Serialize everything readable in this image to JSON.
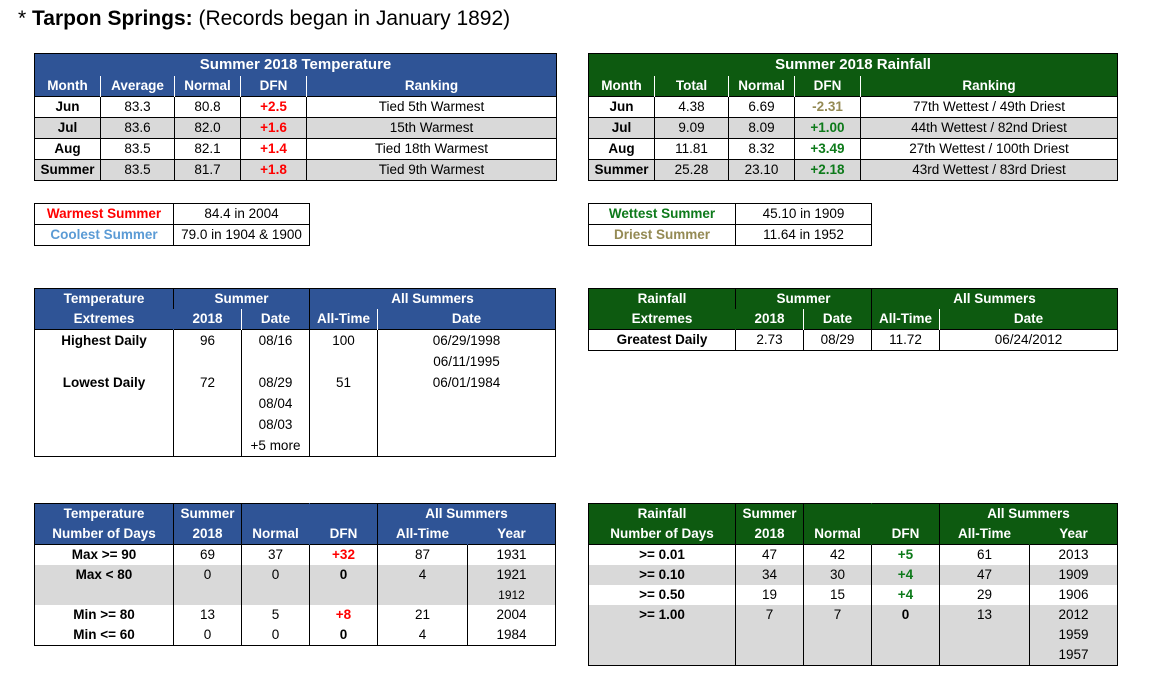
{
  "title": {
    "prefix": "* ",
    "location": "Tarpon Springs:",
    "note": "(Records began in January 1892)"
  },
  "temp_summary": {
    "caption": "Summer 2018 Temperature",
    "headers": [
      "Month",
      "Average",
      "Normal",
      "DFN",
      "Ranking"
    ],
    "rows": [
      [
        "Jun",
        "83.3",
        "80.8",
        "+2.5",
        "Tied 5th Warmest"
      ],
      [
        "Jul",
        "83.6",
        "82.0",
        "+1.6",
        "15th Warmest"
      ],
      [
        "Aug",
        "83.5",
        "82.1",
        "+1.4",
        "Tied 18th Warmest"
      ],
      [
        "Summer",
        "83.5",
        "81.7",
        "+1.8",
        "Tied 9th Warmest"
      ]
    ]
  },
  "rain_summary": {
    "caption": "Summer 2018 Rainfall",
    "headers": [
      "Month",
      "Total",
      "Normal",
      "DFN",
      "Ranking"
    ],
    "rows": [
      [
        "Jun",
        "4.38",
        "6.69",
        "-2.31",
        "77th Wettest / 49th Driest"
      ],
      [
        "Jul",
        "9.09",
        "8.09",
        "+1.00",
        "44th Wettest / 82nd Driest"
      ],
      [
        "Aug",
        "11.81",
        "8.32",
        "+3.49",
        "27th Wettest / 100th Driest"
      ],
      [
        "Summer",
        "25.28",
        "23.10",
        "+2.18",
        "43rd Wettest / 83rd Driest"
      ]
    ]
  },
  "temp_records": {
    "warmest_label": "Warmest Summer",
    "warmest_value": "84.4 in 2004",
    "coolest_label": "Coolest Summer",
    "coolest_value": "79.0 in 1904 & 1900"
  },
  "rain_records": {
    "wettest_label": "Wettest Summer",
    "wettest_value": "45.10 in 1909",
    "driest_label": "Driest Summer",
    "driest_value": "11.64 in 1952"
  },
  "temp_extremes": {
    "h1": "Temperature",
    "h1b": "Extremes",
    "h2": "Summer",
    "h2a": "2018",
    "h2b": "Date",
    "h3": "All Summers",
    "h3a": "All-Time",
    "h3b": "Date",
    "labels": [
      "Highest Daily",
      "Lowest Daily"
    ],
    "summer_vals": [
      "96",
      "72"
    ],
    "summer_dates": [
      "08/16",
      "08/29",
      "08/04",
      "08/03",
      "+5 more"
    ],
    "alltime_vals": [
      "100",
      "51"
    ],
    "alltime_dates": [
      "06/29/1998",
      "06/11/1995",
      "06/01/1984"
    ]
  },
  "rain_extremes": {
    "h1": "Rainfall",
    "h1b": "Extremes",
    "h2": "Summer",
    "h2a": "2018",
    "h2b": "Date",
    "h3": "All Summers",
    "h3a": "All-Time",
    "h3b": "Date",
    "row": [
      "Greatest Daily",
      "2.73",
      "08/29",
      "11.72",
      "06/24/2012"
    ]
  },
  "temp_days": {
    "h1": "Temperature",
    "h1b": "Number of Days",
    "h2": "Summer",
    "h2a": "2018",
    "h3": "Normal",
    "h4": "DFN",
    "h5": "All Summers",
    "h5a": "All-Time",
    "h5b": "Year",
    "rows": [
      [
        "Max >= 90",
        "69",
        "37",
        "+32",
        "87",
        "1931"
      ],
      [
        "Max < 80",
        "0",
        "0",
        "0",
        "4",
        "1921"
      ],
      [
        "",
        "",
        "",
        "",
        "",
        "1912"
      ],
      [
        "Min >= 80",
        "13",
        "5",
        "+8",
        "21",
        "2004"
      ],
      [
        "Min <= 60",
        "0",
        "0",
        "0",
        "4",
        "1984"
      ]
    ]
  },
  "rain_days": {
    "h1": "Rainfall",
    "h1b": "Number of Days",
    "h2": "Summer",
    "h2a": "2018",
    "h3": "Normal",
    "h4": "DFN",
    "h5": "All Summers",
    "h5a": "All-Time",
    "h5b": "Year",
    "rows": [
      [
        ">= 0.01",
        "47",
        "42",
        "+5",
        "61",
        "2013"
      ],
      [
        ">= 0.10",
        "34",
        "30",
        "+4",
        "47",
        "1909"
      ],
      [
        ">= 0.50",
        "19",
        "15",
        "+4",
        "29",
        "1906"
      ],
      [
        ">= 1.00",
        "7",
        "7",
        "0",
        "13",
        "2012"
      ],
      [
        "",
        "",
        "",
        "",
        "",
        "1959"
      ],
      [
        "",
        "",
        "",
        "",
        "",
        "1957"
      ]
    ]
  },
  "colors": {
    "temp_header": "#2f5496",
    "rain_header": "#0d5a10",
    "positive_temp": "#ff0000",
    "positive_rain": "#0d7a1a",
    "negative_rain": "#948a54",
    "cool": "#5b9bd5",
    "row_shade": "#d9d9d9"
  }
}
